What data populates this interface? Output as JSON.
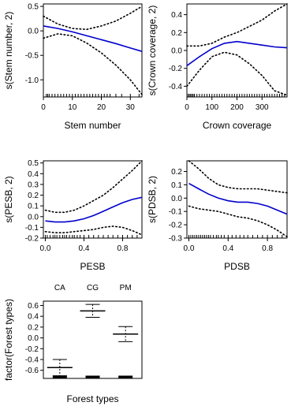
{
  "chart_data": [
    {
      "type": "line",
      "xlabel": "Stem number",
      "ylabel": "s(Stem number, 2)",
      "xlim": [
        0,
        34
      ],
      "ylim": [
        -1.35,
        0.55
      ],
      "xticks": [
        0,
        10,
        20,
        30
      ],
      "xtick_labels": [
        "0",
        "10",
        "20",
        "30"
      ],
      "yticks": [
        0.5,
        0,
        -0.5,
        -1
      ],
      "ytick_labels": [
        "0.5",
        "0.0",
        "-0.5",
        "-1.0"
      ],
      "series": [
        {
          "role": "fit",
          "color": "#0000cc",
          "style": "solid",
          "x": [
            0,
            5,
            10,
            15,
            20,
            25,
            30,
            34
          ],
          "y": [
            0.1,
            0.05,
            -0.02,
            -0.1,
            -0.18,
            -0.26,
            -0.35,
            -0.42
          ]
        },
        {
          "role": "upper",
          "color": "#000000",
          "style": "dotted",
          "x": [
            0,
            5,
            10,
            15,
            20,
            25,
            30,
            34
          ],
          "y": [
            0.3,
            0.14,
            0.05,
            0.03,
            0.1,
            0.2,
            0.36,
            0.5
          ]
        },
        {
          "role": "lower",
          "color": "#000000",
          "style": "dotted",
          "x": [
            0,
            5,
            10,
            15,
            20,
            25,
            30,
            34
          ],
          "y": [
            -0.15,
            -0.06,
            -0.1,
            -0.25,
            -0.45,
            -0.7,
            -1.0,
            -1.3
          ]
        }
      ],
      "rug": [
        0,
        1,
        1.5,
        2,
        3,
        4,
        5,
        6,
        7,
        8,
        9,
        10,
        11,
        12,
        13,
        14,
        15,
        16,
        17,
        18,
        19,
        20,
        21,
        22,
        23,
        25,
        27,
        30,
        33
      ]
    },
    {
      "type": "line",
      "xlabel": "Crown coverage",
      "ylabel": "s(Crown coverage, 2)",
      "xlim": [
        0,
        400
      ],
      "ylim": [
        -0.52,
        0.52
      ],
      "xticks": [
        0,
        100,
        200,
        300
      ],
      "xtick_labels": [
        "0",
        "100",
        "200",
        "300"
      ],
      "yticks": [
        0.4,
        0.2,
        0,
        -0.2,
        -0.4
      ],
      "ytick_labels": [
        "0.4",
        "0.2",
        "0.0",
        "-0.2",
        "-0.4"
      ],
      "series": [
        {
          "role": "fit",
          "color": "#0000cc",
          "style": "solid",
          "x": [
            0,
            50,
            100,
            150,
            200,
            250,
            300,
            350,
            400
          ],
          "y": [
            -0.17,
            -0.07,
            0.02,
            0.08,
            0.1,
            0.08,
            0.06,
            0.04,
            0.03
          ]
        },
        {
          "role": "upper",
          "color": "#000000",
          "style": "dotted",
          "x": [
            0,
            50,
            100,
            150,
            200,
            250,
            300,
            350,
            400
          ],
          "y": [
            0.05,
            0.05,
            0.08,
            0.15,
            0.2,
            0.27,
            0.34,
            0.44,
            0.52
          ]
        },
        {
          "role": "lower",
          "color": "#000000",
          "style": "dotted",
          "x": [
            0,
            50,
            100,
            150,
            200,
            250,
            300,
            350,
            400
          ],
          "y": [
            -0.4,
            -0.22,
            -0.07,
            -0.02,
            -0.05,
            -0.15,
            -0.28,
            -0.45,
            -0.5
          ]
        }
      ],
      "rug": [
        0,
        5,
        10,
        15,
        20,
        25,
        30,
        40,
        50,
        60,
        70,
        80,
        90,
        100,
        110,
        120,
        130,
        140,
        150,
        160,
        170,
        180,
        190,
        200,
        210,
        220,
        230,
        240,
        250,
        260,
        270,
        280,
        290,
        300,
        310,
        320,
        330,
        340,
        350,
        360,
        370,
        380,
        390
      ]
    },
    {
      "type": "line",
      "xlabel": "PESB",
      "ylabel": "s(PESB, 2)",
      "xlim": [
        -0.02,
        1.0
      ],
      "ylim": [
        -0.2,
        0.52
      ],
      "xticks": [
        0,
        0.4,
        0.8
      ],
      "xtick_labels": [
        "0.0",
        "0.4",
        "0.8"
      ],
      "yticks": [
        0.5,
        0.4,
        0.3,
        0.2,
        0.1,
        0,
        -0.1,
        -0.2
      ],
      "ytick_labels": [
        "0.5",
        "0.4",
        "0.3",
        "0.2",
        "0.1",
        "0.0",
        "-0.1",
        "-0.2"
      ],
      "series": [
        {
          "role": "fit",
          "color": "#0000cc",
          "style": "solid",
          "x": [
            0,
            0.1,
            0.2,
            0.3,
            0.4,
            0.5,
            0.6,
            0.7,
            0.8,
            0.9,
            1.0
          ],
          "y": [
            -0.04,
            -0.05,
            -0.05,
            -0.04,
            -0.02,
            0.01,
            0.05,
            0.09,
            0.13,
            0.16,
            0.18
          ]
        },
        {
          "role": "upper",
          "color": "#000000",
          "style": "dotted",
          "x": [
            0,
            0.1,
            0.2,
            0.3,
            0.4,
            0.5,
            0.6,
            0.7,
            0.8,
            0.9,
            1.0
          ],
          "y": [
            0.06,
            0.04,
            0.04,
            0.06,
            0.1,
            0.15,
            0.2,
            0.27,
            0.35,
            0.43,
            0.52
          ]
        },
        {
          "role": "lower",
          "color": "#000000",
          "style": "dotted",
          "x": [
            0,
            0.1,
            0.2,
            0.3,
            0.4,
            0.5,
            0.6,
            0.7,
            0.8,
            0.9,
            1.0
          ],
          "y": [
            -0.14,
            -0.15,
            -0.15,
            -0.14,
            -0.13,
            -0.12,
            -0.1,
            -0.09,
            -0.1,
            -0.13,
            -0.17
          ]
        }
      ],
      "rug": [
        0,
        0.02,
        0.05,
        0.08,
        0.1,
        0.12,
        0.15,
        0.18,
        0.2,
        0.22,
        0.25,
        0.28,
        0.3,
        0.33,
        0.36,
        0.4,
        0.45,
        0.5,
        0.55,
        0.6,
        0.65,
        0.7,
        0.75,
        0.8,
        0.85,
        0.9,
        0.95,
        1.0
      ]
    },
    {
      "type": "line",
      "xlabel": "PDSB",
      "ylabel": "s(PDSB, 2)",
      "xlim": [
        -0.02,
        1.0
      ],
      "ylim": [
        -0.3,
        0.28
      ],
      "xticks": [
        0,
        0.4,
        0.8
      ],
      "xtick_labels": [
        "0.0",
        "0.4",
        "0.8"
      ],
      "yticks": [
        0.2,
        0.1,
        0,
        -0.1,
        -0.2,
        -0.3
      ],
      "ytick_labels": [
        "0.2",
        "0.1",
        "0.0",
        "-0.1",
        "-0.2",
        "-0.3"
      ],
      "series": [
        {
          "role": "fit",
          "color": "#0000cc",
          "style": "solid",
          "x": [
            0,
            0.1,
            0.2,
            0.3,
            0.4,
            0.5,
            0.6,
            0.7,
            0.8,
            0.9,
            1.0
          ],
          "y": [
            0.11,
            0.07,
            0.03,
            0.0,
            -0.02,
            -0.03,
            -0.03,
            -0.04,
            -0.06,
            -0.09,
            -0.12
          ]
        },
        {
          "role": "upper",
          "color": "#000000",
          "style": "dotted",
          "x": [
            0,
            0.1,
            0.2,
            0.3,
            0.4,
            0.5,
            0.6,
            0.7,
            0.8,
            0.9,
            1.0
          ],
          "y": [
            0.28,
            0.22,
            0.15,
            0.1,
            0.08,
            0.07,
            0.07,
            0.07,
            0.06,
            0.05,
            0.04
          ]
        },
        {
          "role": "lower",
          "color": "#000000",
          "style": "dotted",
          "x": [
            0,
            0.1,
            0.2,
            0.3,
            0.4,
            0.5,
            0.6,
            0.7,
            0.8,
            0.9,
            1.0
          ],
          "y": [
            -0.06,
            -0.08,
            -0.09,
            -0.1,
            -0.12,
            -0.14,
            -0.15,
            -0.17,
            -0.2,
            -0.24,
            -0.29
          ]
        }
      ],
      "rug": [
        0,
        0.02,
        0.04,
        0.06,
        0.08,
        0.1,
        0.12,
        0.14,
        0.16,
        0.18,
        0.2,
        0.22,
        0.25,
        0.28,
        0.3,
        0.33,
        0.36,
        0.4,
        0.44,
        0.48,
        0.52,
        0.56,
        0.6,
        0.65,
        0.7,
        0.75,
        0.8,
        0.85,
        0.9,
        0.95,
        1.0
      ]
    },
    {
      "type": "factor",
      "xlabel": "Forest types",
      "ylabel": "factor(Forest types)",
      "ylim": [
        -0.75,
        0.68
      ],
      "yticks": [
        0.6,
        0.4,
        0.2,
        0.0,
        -0.2,
        -0.4,
        -0.6
      ],
      "ytick_labels": [
        "0.6",
        "0.4",
        "0.2",
        "0.0",
        "-0.2",
        "-0.4",
        "-0.6"
      ],
      "categories": [
        "CA",
        "CG",
        "PM"
      ],
      "estimates": [
        -0.55,
        0.5,
        0.07
      ],
      "upper": [
        -0.4,
        0.62,
        0.21
      ],
      "lower": [
        -0.7,
        0.38,
        -0.07
      ],
      "rug_level": -0.72
    }
  ]
}
